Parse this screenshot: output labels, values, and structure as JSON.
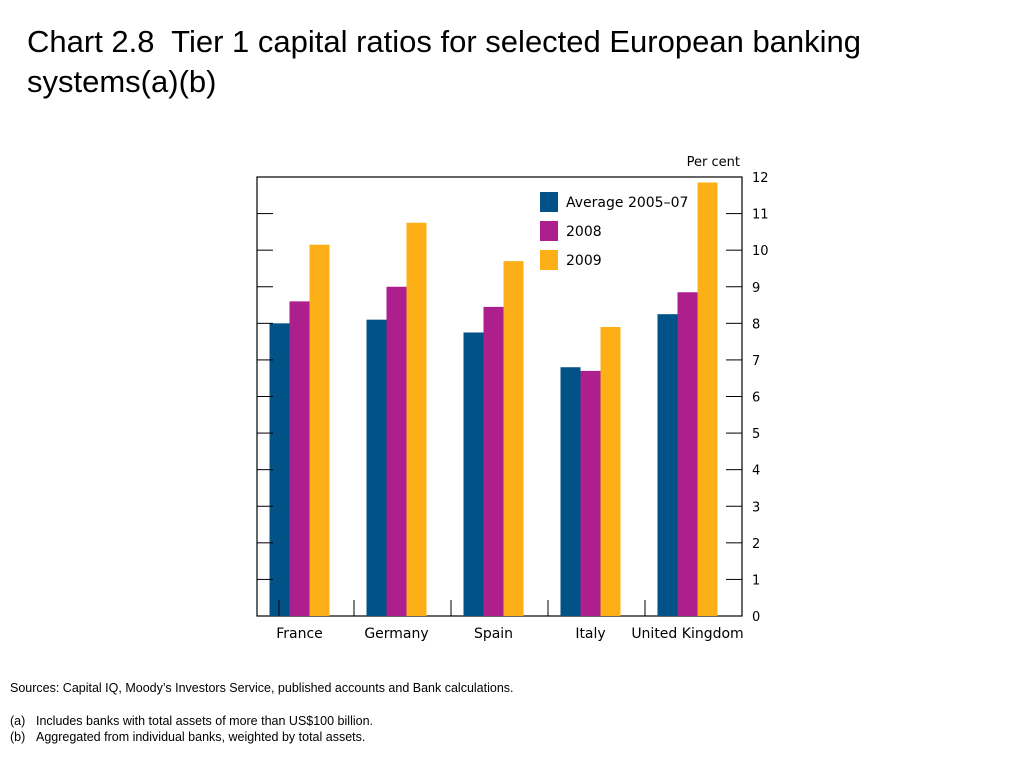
{
  "slide": {
    "title": "Chart 2.8  Tier 1 capital ratios for selected European banking systems(a)(b)",
    "sources": "Sources:  Capital IQ, Moody’s Investors Service, published accounts and Bank calculations.",
    "footnotes": [
      {
        "marker": "(a)",
        "text": "Includes banks with total assets of more than US$100 billion."
      },
      {
        "marker": "(b)",
        "text": "Aggregated from individual banks, weighted by total assets."
      }
    ]
  },
  "chart_data": {
    "type": "bar",
    "title": "",
    "xlabel": "",
    "ylabel": "Per cent",
    "ylabel_position": "top-right",
    "y_axis_side": "right",
    "ylim": [
      0,
      12
    ],
    "yticks": [
      0,
      1,
      2,
      3,
      4,
      5,
      6,
      7,
      8,
      9,
      10,
      11,
      12
    ],
    "grid": false,
    "legend_position": "top-right",
    "categories": [
      "France",
      "Germany",
      "Spain",
      "Italy",
      "United Kingdom"
    ],
    "series": [
      {
        "name": "Average 2005–07",
        "color": "#005287",
        "values": [
          8.0,
          8.1,
          7.75,
          6.8,
          8.25
        ]
      },
      {
        "name": "2008",
        "color": "#AD1F8C",
        "values": [
          8.6,
          9.0,
          8.45,
          6.7,
          8.85
        ]
      },
      {
        "name": "2009",
        "color": "#FCAF17",
        "values": [
          10.15,
          10.75,
          9.7,
          7.9,
          11.85
        ]
      }
    ]
  }
}
